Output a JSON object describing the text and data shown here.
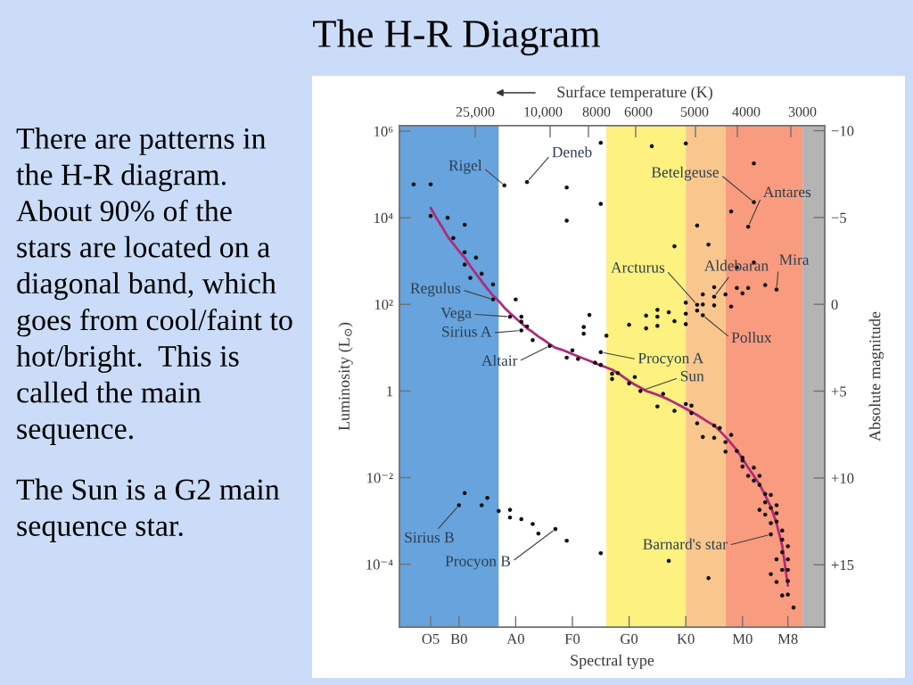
{
  "chart_data": {
    "type": "scatter",
    "title": "The H-R Diagram",
    "xlabel": "Spectral type",
    "x2label": "Surface temperature (K)",
    "ylabel": "Luminosity (L$_{⊙}$)",
    "y2label": "Absolute magnitude",
    "categories": [
      null,
      null,
      null,
      null,
      null,
      "O5",
      null,
      null,
      null,
      null,
      "B0",
      null,
      null,
      null,
      null,
      null,
      null,
      null,
      null,
      null,
      "A0",
      null,
      null,
      null,
      null,
      null,
      null,
      null,
      null,
      null,
      "F0",
      null,
      null,
      null,
      null,
      null,
      null,
      null,
      null,
      null,
      "G0",
      null,
      null,
      null,
      null,
      null,
      null,
      null,
      null,
      null,
      "K0",
      null,
      null,
      null,
      null,
      null,
      null,
      null,
      null,
      null,
      "M0",
      null,
      null,
      null,
      null,
      null,
      null,
      null,
      "M8",
      null,
      null,
      null,
      null,
      null,
      null
    ],
    "ylim": [
      3.5e-06,
      1350000.0
    ],
    "yticks": [
      {
        "value": 1000000,
        "label": "10⁶"
      },
      {
        "value": 10000,
        "label": "10⁴"
      },
      {
        "value": 100,
        "label": "10²"
      },
      1,
      {
        "value": 0.01,
        "label": "10⁻²"
      },
      {
        "value": 0.0001,
        "label": "10⁻⁴"
      }
    ],
    "y2lim": [
      18.6,
      -10.3
    ],
    "y2ticks": [
      {
        "value": -10,
        "label": "−10"
      },
      {
        "value": -5,
        "label": "−5"
      },
      0,
      {
        "value": 5,
        "label": "+5"
      },
      {
        "value": 10,
        "label": "+10"
      },
      {
        "value": 15,
        "label": "+15"
      }
    ],
    "log": "y",
    "series": [
      {
        "color": "#111111",
        "marker": "circle",
        "values": [
          null,
          null,
          59000,
          null,
          null,
          59000,
          null,
          null,
          10000,
          3400,
          null,
          6900,
          410,
          1200,
          510,
          0.0034,
          290,
          0.0017,
          null,
          0.0018,
          130,
          52,
          31,
          15,
          0.00051,
          null,
          null,
          null,
          null,
          50000,
          8.7,
          5.5,
          30,
          57,
          4.5,
          540000,
          19,
          2.5,
          2.6,
          null,
          34,
          2.1,
          null,
          55,
          450000,
          75,
          0.86,
          66,
          2200,
          null,
          520000,
          0.46,
          6600,
          170,
          2400,
          250,
          0.14,
          170,
          14000,
          710,
          180,
          240,
          180000,
          0.011,
          280,
          0.004,
          0.0023,
          0.0006,
          0.00026,
          1e-05,
          null,
          null,
          null,
          null,
          null
        ]
      },
      {
        "color": "#111111",
        "marker": "circle",
        "values": [
          null,
          null,
          null,
          null,
          null,
          11000,
          null,
          null,
          null,
          null,
          null,
          1600,
          null,
          null,
          0.0023,
          null,
          null,
          null,
          null,
          0.0012,
          null,
          40,
          null,
          0.00085,
          null,
          null,
          null,
          null,
          null,
          8600,
          null,
          null,
          21,
          null,
          null,
          21000,
          null,
          1.9,
          null,
          null,
          1.5,
          null,
          null,
          28,
          null,
          52,
          null,
          0.00012,
          41,
          null,
          110,
          0.31,
          72,
          100,
          4.8e-05,
          95,
          null,
          0.066,
          89,
          240,
          0.029,
          0.011,
          930,
          0.0068,
          0.0042,
          0.002,
          0.0015,
          0.00037,
          0.00013,
          null,
          null,
          null,
          null,
          null,
          null
        ]
      },
      {
        "color": "#111111",
        "marker": "circle",
        "values": [
          null,
          null,
          null,
          null,
          null,
          null,
          null,
          null,
          null,
          null,
          null,
          830,
          null,
          null,
          null,
          null,
          null,
          null,
          null,
          null,
          null,
          0.0011,
          null,
          null,
          null,
          null,
          null,
          null,
          null,
          5.9,
          null,
          null,
          null,
          null,
          null,
          4.0,
          null,
          null,
          null,
          null,
          null,
          null,
          null,
          null,
          null,
          32,
          null,
          null,
          0.35,
          null,
          61,
          null,
          0.18,
          0.087,
          null,
          0.16,
          null,
          0.04,
          0.097,
          0.041,
          0.025,
          null,
          0.017,
          0.0018,
          0.0027,
          0.00089,
          0.00097,
          0.00019,
          7.4e-05,
          null,
          null,
          null,
          null,
          null,
          null
        ]
      },
      {
        "color": "#111111",
        "marker": "circle",
        "values": [
          null,
          null,
          null,
          null,
          null,
          null,
          null,
          null,
          null,
          null,
          null,
          0.0044,
          null,
          null,
          null,
          null,
          null,
          null,
          null,
          null,
          null,
          null,
          null,
          null,
          null,
          null,
          null,
          null,
          null,
          0.00035,
          null,
          null,
          null,
          null,
          null,
          0.00018,
          null,
          null,
          null,
          null,
          null,
          null,
          null,
          null,
          null,
          0.44,
          null,
          null,
          null,
          null,
          35,
          null,
          null,
          null,
          null,
          0.083,
          null,
          null,
          null,
          null,
          0.018,
          null,
          0.0085,
          null,
          0.0014,
          5.9e-05,
          0.00013,
          7.4e-05,
          4.1e-05,
          null,
          null,
          null,
          null,
          null,
          null
        ]
      },
      {
        "color": "#111111",
        "marker": "circle",
        "values": [
          null,
          null,
          null,
          null,
          null,
          null,
          null,
          null,
          null,
          null,
          null,
          null,
          null,
          null,
          null,
          null,
          null,
          null,
          null,
          null,
          null,
          null,
          null,
          null,
          null,
          null,
          null,
          null,
          null,
          null,
          null,
          null,
          null,
          null,
          null,
          null,
          null,
          null,
          null,
          null,
          null,
          null,
          null,
          null,
          null,
          null,
          null,
          null,
          null,
          null,
          0.5,
          null,
          null,
          null,
          null,
          null,
          null,
          null,
          null,
          null,
          null,
          null,
          null,
          null,
          null,
          null,
          3.9e-05,
          1.9e-05,
          2e-05,
          null,
          null,
          null,
          null,
          null,
          null
        ]
      },
      {
        "name": "Rigel",
        "color": "#111111",
        "marker": "circle",
        "values": [
          null,
          null,
          null,
          null,
          null,
          null,
          null,
          null,
          null,
          null,
          null,
          null,
          null,
          null,
          null,
          null,
          null,
          null,
          56000,
          null,
          null,
          null,
          null,
          null,
          null,
          null,
          null,
          null,
          null,
          null,
          null,
          null,
          null,
          null,
          null,
          null,
          null,
          null,
          null,
          null,
          null,
          null,
          null,
          null,
          null,
          null,
          null,
          null,
          null,
          null,
          null,
          null,
          null,
          null,
          null,
          null,
          null,
          null,
          null,
          null,
          null,
          null,
          null,
          null,
          null,
          null,
          null,
          null,
          null,
          null,
          null,
          null,
          null,
          null,
          null
        ]
      },
      {
        "name": "Deneb",
        "color": "#111111",
        "marker": "circle",
        "values": [
          null,
          null,
          null,
          null,
          null,
          null,
          null,
          null,
          null,
          null,
          null,
          null,
          null,
          null,
          null,
          null,
          null,
          null,
          null,
          null,
          null,
          null,
          67000,
          null,
          null,
          null,
          null,
          null,
          null,
          null,
          null,
          null,
          null,
          null,
          null,
          null,
          null,
          null,
          null,
          null,
          null,
          null,
          null,
          null,
          null,
          null,
          null,
          null,
          null,
          null,
          null,
          null,
          null,
          null,
          null,
          null,
          null,
          null,
          null,
          null,
          null,
          null,
          null,
          null,
          null,
          null,
          null,
          null,
          null,
          null,
          null,
          null,
          null,
          null,
          null
        ]
      },
      {
        "name": "Betelgeuse",
        "color": "#111111",
        "marker": "circle",
        "values": [
          null,
          null,
          null,
          null,
          null,
          null,
          null,
          null,
          null,
          null,
          null,
          null,
          null,
          null,
          null,
          null,
          null,
          null,
          null,
          null,
          null,
          null,
          null,
          null,
          null,
          null,
          null,
          null,
          null,
          null,
          null,
          null,
          null,
          null,
          null,
          null,
          null,
          null,
          null,
          null,
          null,
          null,
          null,
          null,
          null,
          null,
          null,
          null,
          null,
          null,
          null,
          null,
          null,
          null,
          null,
          null,
          null,
          null,
          null,
          null,
          null,
          null,
          23000,
          null,
          null,
          null,
          null,
          null,
          null,
          null,
          null,
          null,
          null,
          null,
          null
        ]
      },
      {
        "name": "Antares",
        "color": "#111111",
        "marker": "circle",
        "values": [
          null,
          null,
          null,
          null,
          null,
          null,
          null,
          null,
          null,
          null,
          null,
          null,
          null,
          null,
          null,
          null,
          null,
          null,
          null,
          null,
          null,
          null,
          null,
          null,
          null,
          null,
          null,
          null,
          null,
          null,
          null,
          null,
          null,
          null,
          null,
          null,
          null,
          null,
          null,
          null,
          null,
          null,
          null,
          null,
          null,
          null,
          null,
          null,
          null,
          null,
          null,
          null,
          null,
          null,
          null,
          null,
          null,
          null,
          null,
          null,
          null,
          6200,
          null,
          null,
          null,
          null,
          null,
          null,
          null,
          null,
          null,
          null,
          null,
          null,
          null
        ]
      },
      {
        "name": "Mira",
        "color": "#111111",
        "marker": "circle",
        "values": [
          null,
          null,
          null,
          null,
          null,
          null,
          null,
          null,
          null,
          null,
          null,
          null,
          null,
          null,
          null,
          null,
          null,
          null,
          null,
          null,
          null,
          null,
          null,
          null,
          null,
          null,
          null,
          null,
          null,
          null,
          null,
          null,
          null,
          null,
          null,
          null,
          null,
          null,
          null,
          null,
          null,
          null,
          null,
          null,
          null,
          null,
          null,
          null,
          null,
          null,
          null,
          null,
          null,
          null,
          null,
          null,
          null,
          null,
          null,
          null,
          null,
          null,
          null,
          null,
          null,
          null,
          220,
          null,
          null,
          null,
          null,
          null,
          null,
          null,
          null
        ]
      },
      {
        "name": "Aldebaran",
        "color": "#111111",
        "marker": "circle",
        "values": [
          null,
          null,
          null,
          null,
          null,
          null,
          null,
          null,
          null,
          null,
          null,
          null,
          null,
          null,
          null,
          null,
          null,
          null,
          null,
          null,
          null,
          null,
          null,
          null,
          null,
          null,
          null,
          null,
          null,
          null,
          null,
          null,
          null,
          null,
          null,
          null,
          null,
          null,
          null,
          null,
          null,
          null,
          null,
          null,
          null,
          null,
          null,
          null,
          null,
          null,
          null,
          null,
          null,
          null,
          null,
          150,
          null,
          null,
          null,
          null,
          null,
          null,
          null,
          null,
          null,
          null,
          null,
          null,
          null,
          null,
          null,
          null,
          null,
          null,
          null
        ]
      },
      {
        "name": "Arcturus",
        "color": "#111111",
        "marker": "circle",
        "values": [
          null,
          null,
          null,
          null,
          null,
          null,
          null,
          null,
          null,
          null,
          null,
          null,
          null,
          null,
          null,
          null,
          null,
          null,
          null,
          null,
          null,
          null,
          null,
          null,
          null,
          null,
          null,
          null,
          null,
          null,
          null,
          null,
          null,
          null,
          null,
          null,
          null,
          null,
          null,
          null,
          null,
          null,
          null,
          null,
          null,
          null,
          null,
          null,
          null,
          null,
          null,
          null,
          98,
          null,
          null,
          null,
          null,
          null,
          null,
          null,
          null,
          null,
          null,
          null,
          null,
          null,
          null,
          null,
          null,
          null,
          null,
          null,
          null,
          null,
          null
        ]
      },
      {
        "name": "Pollux",
        "color": "#111111",
        "marker": "circle",
        "values": [
          null,
          null,
          null,
          null,
          null,
          null,
          null,
          null,
          null,
          null,
          null,
          null,
          null,
          null,
          null,
          null,
          null,
          null,
          null,
          null,
          null,
          null,
          null,
          null,
          null,
          null,
          null,
          null,
          null,
          null,
          null,
          null,
          null,
          null,
          null,
          null,
          null,
          null,
          null,
          null,
          null,
          null,
          null,
          null,
          null,
          null,
          null,
          null,
          null,
          null,
          null,
          null,
          null,
          56,
          null,
          null,
          null,
          null,
          null,
          null,
          null,
          null,
          null,
          null,
          null,
          null,
          null,
          null,
          null,
          null,
          null,
          null,
          null,
          null,
          null
        ]
      },
      {
        "name": "Regulus",
        "color": "#111111",
        "marker": "circle",
        "values": [
          null,
          null,
          null,
          null,
          null,
          null,
          null,
          null,
          null,
          null,
          null,
          null,
          null,
          null,
          null,
          null,
          130,
          null,
          null,
          null,
          null,
          null,
          null,
          null,
          null,
          null,
          null,
          null,
          null,
          null,
          null,
          null,
          null,
          null,
          null,
          null,
          null,
          null,
          null,
          null,
          null,
          null,
          null,
          null,
          null,
          null,
          null,
          null,
          null,
          null,
          null,
          null,
          null,
          null,
          null,
          null,
          null,
          null,
          null,
          null,
          null,
          null,
          null,
          null,
          null,
          null,
          null,
          null,
          null,
          null,
          null,
          null,
          null,
          null,
          null
        ]
      },
      {
        "name": "Vega",
        "color": "#111111",
        "marker": "circle",
        "values": [
          null,
          null,
          null,
          null,
          null,
          null,
          null,
          null,
          null,
          null,
          null,
          null,
          null,
          null,
          null,
          null,
          null,
          null,
          null,
          52,
          null,
          null,
          null,
          null,
          null,
          null,
          null,
          null,
          null,
          null,
          null,
          null,
          null,
          null,
          null,
          null,
          null,
          null,
          null,
          null,
          null,
          null,
          null,
          null,
          null,
          null,
          null,
          null,
          null,
          null,
          null,
          null,
          null,
          null,
          null,
          null,
          null,
          null,
          null,
          null,
          null,
          null,
          null,
          null,
          null,
          null,
          null,
          null,
          null,
          null,
          null,
          null,
          null,
          null,
          null
        ]
      },
      {
        "name": "Sirius A",
        "color": "#111111",
        "marker": "circle",
        "values": [
          null,
          null,
          null,
          null,
          null,
          null,
          null,
          null,
          null,
          null,
          null,
          null,
          null,
          null,
          null,
          null,
          null,
          null,
          null,
          null,
          null,
          25,
          null,
          null,
          null,
          null,
          null,
          null,
          null,
          null,
          null,
          null,
          null,
          null,
          null,
          null,
          null,
          null,
          null,
          null,
          null,
          null,
          null,
          null,
          null,
          null,
          null,
          null,
          null,
          null,
          null,
          null,
          null,
          null,
          null,
          null,
          null,
          null,
          null,
          null,
          null,
          null,
          null,
          null,
          null,
          null,
          null,
          null,
          null,
          null,
          null,
          null,
          null,
          null,
          null
        ]
      },
      {
        "name": "Altair",
        "color": "#111111",
        "marker": "circle",
        "values": [
          null,
          null,
          null,
          null,
          null,
          null,
          null,
          null,
          null,
          null,
          null,
          null,
          null,
          null,
          null,
          null,
          null,
          null,
          null,
          null,
          null,
          null,
          null,
          null,
          null,
          null,
          11,
          null,
          null,
          null,
          null,
          null,
          null,
          null,
          null,
          null,
          null,
          null,
          null,
          null,
          null,
          null,
          null,
          null,
          null,
          null,
          null,
          null,
          null,
          null,
          null,
          null,
          null,
          null,
          null,
          null,
          null,
          null,
          null,
          null,
          null,
          null,
          null,
          null,
          null,
          null,
          null,
          null,
          null,
          null,
          null,
          null,
          null,
          null,
          null
        ]
      },
      {
        "name": "Procyon A",
        "color": "#111111",
        "marker": "circle",
        "values": [
          null,
          null,
          null,
          null,
          null,
          null,
          null,
          null,
          null,
          null,
          null,
          null,
          null,
          null,
          null,
          null,
          null,
          null,
          null,
          null,
          null,
          null,
          null,
          null,
          null,
          null,
          null,
          null,
          null,
          null,
          null,
          null,
          null,
          null,
          null,
          7.9,
          null,
          null,
          null,
          null,
          null,
          null,
          null,
          null,
          null,
          null,
          null,
          null,
          null,
          null,
          null,
          null,
          null,
          null,
          null,
          null,
          null,
          null,
          null,
          null,
          null,
          null,
          null,
          null,
          null,
          null,
          null,
          null,
          null,
          null,
          null,
          null,
          null,
          null,
          null
        ]
      },
      {
        "name": "Sun",
        "color": "#111111",
        "marker": "circle",
        "values": [
          null,
          null,
          null,
          null,
          null,
          null,
          null,
          null,
          null,
          null,
          null,
          null,
          null,
          null,
          null,
          null,
          null,
          null,
          null,
          null,
          null,
          null,
          null,
          null,
          null,
          null,
          null,
          null,
          null,
          null,
          null,
          null,
          null,
          null,
          null,
          null,
          null,
          null,
          null,
          null,
          null,
          null,
          1,
          null,
          null,
          null,
          null,
          null,
          null,
          null,
          null,
          null,
          null,
          null,
          null,
          null,
          null,
          null,
          null,
          null,
          null,
          null,
          null,
          null,
          null,
          null,
          null,
          null,
          null,
          null,
          null,
          null,
          null,
          null,
          null
        ]
      },
      {
        "name": "Sirius B",
        "color": "#111111",
        "marker": "circle",
        "values": [
          null,
          null,
          null,
          null,
          null,
          null,
          null,
          null,
          null,
          null,
          0.0023,
          null,
          null,
          null,
          null,
          null,
          null,
          null,
          null,
          null,
          null,
          null,
          null,
          null,
          null,
          null,
          null,
          null,
          null,
          null,
          null,
          null,
          null,
          null,
          null,
          null,
          null,
          null,
          null,
          null,
          null,
          null,
          null,
          null,
          null,
          null,
          null,
          null,
          null,
          null,
          null,
          null,
          null,
          null,
          null,
          null,
          null,
          null,
          null,
          null,
          null,
          null,
          null,
          null,
          null,
          null,
          null,
          null,
          null,
          null,
          null,
          null,
          null,
          null,
          null
        ]
      },
      {
        "name": "Procyon B",
        "color": "#111111",
        "marker": "circle",
        "values": [
          null,
          null,
          null,
          null,
          null,
          null,
          null,
          null,
          null,
          null,
          null,
          null,
          null,
          null,
          null,
          null,
          null,
          null,
          null,
          null,
          null,
          null,
          null,
          null,
          null,
          null,
          null,
          0.00065,
          null,
          null,
          null,
          null,
          null,
          null,
          null,
          null,
          null,
          null,
          null,
          null,
          null,
          null,
          null,
          null,
          null,
          null,
          null,
          null,
          null,
          null,
          null,
          null,
          null,
          null,
          null,
          null,
          null,
          null,
          null,
          null,
          null,
          null,
          null,
          null,
          null,
          null,
          null,
          null,
          null,
          null,
          null,
          null,
          null,
          null,
          null
        ]
      },
      {
        "name": "Barnard's star",
        "color": "#111111",
        "marker": "circle",
        "values": [
          null,
          null,
          null,
          null,
          null,
          null,
          null,
          null,
          null,
          null,
          null,
          null,
          null,
          null,
          null,
          null,
          null,
          null,
          null,
          null,
          null,
          null,
          null,
          null,
          null,
          null,
          null,
          null,
          null,
          null,
          null,
          null,
          null,
          null,
          null,
          null,
          null,
          null,
          null,
          null,
          null,
          null,
          null,
          null,
          null,
          null,
          null,
          null,
          null,
          null,
          null,
          null,
          null,
          null,
          null,
          null,
          null,
          null,
          null,
          null,
          null,
          null,
          null,
          null,
          null,
          0.00049,
          null,
          null,
          null,
          null,
          null,
          null,
          null,
          null,
          null
        ]
      },
      {
        "type": "line",
        "color": "#b02a78",
        "line_style": "solid",
        "values": [
          null,
          null,
          null,
          null,
          null,
          17000,
          10000,
          6200,
          3700,
          2500,
          1700,
          1200,
          770,
          510,
          340,
          230,
          160,
          120,
          84,
          63,
          48,
          37,
          28,
          23,
          18,
          15,
          12,
          10,
          9.1,
          8.1,
          7.1,
          6.3,
          5.6,
          5.0,
          4.4,
          3.9,
          3.5,
          3.1,
          2.6,
          2.1,
          1.7,
          1.4,
          1.2,
          1.0,
          0.91,
          0.81,
          0.72,
          0.63,
          0.54,
          0.46,
          0.39,
          0.33,
          0.28,
          0.23,
          0.19,
          0.16,
          0.12,
          0.087,
          0.062,
          0.043,
          0.027,
          0.017,
          0.011,
          0.007,
          0.0039,
          0.0021,
          0.00088,
          0.00027,
          3.2e-05,
          null,
          null,
          null,
          null,
          null,
          null
        ]
      }
    ],
    "annotations": [
      "There are patterns in\nthe H-R diagram.\nAbout 90% of the\nstars are located on a\ndiagonal band, which\ngoes from cool/faint to\nhot/bright.  This is\ncalled the main\nsequence.",
      "The Sun is a G2 main\nsequence star.",
      "25,000",
      "10,000",
      "8000",
      "6000",
      "5000",
      "4000",
      "3000"
    ]
  }
}
